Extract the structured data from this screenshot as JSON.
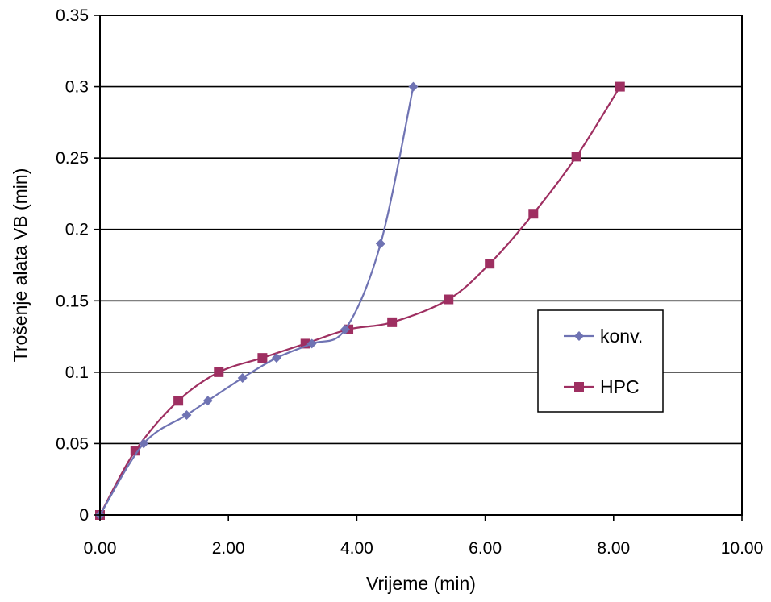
{
  "chart_data": {
    "type": "line",
    "title": "",
    "xlabel": "Vrijeme (min)",
    "ylabel": "Trošenje alata VB (min)",
    "xlim": [
      0,
      10
    ],
    "ylim": [
      0,
      0.35
    ],
    "x_ticks": [
      "0.00",
      "2.00",
      "4.00",
      "6.00",
      "8.00",
      "10.00"
    ],
    "y_ticks": [
      "0",
      "0.05",
      "0.1",
      "0.15",
      "0.2",
      "0.25",
      "0.3",
      "0.35"
    ],
    "grid": "horizontal",
    "legend_position": "right",
    "series": [
      {
        "name": "konv.",
        "color": "#6f73b3",
        "marker": "diamond",
        "points": [
          [
            0,
            0
          ],
          [
            0.68,
            0.05
          ],
          [
            1.35,
            0.07
          ],
          [
            1.68,
            0.08
          ],
          [
            2.22,
            0.096
          ],
          [
            2.75,
            0.11
          ],
          [
            3.3,
            0.12
          ],
          [
            3.82,
            0.13
          ],
          [
            4.37,
            0.19
          ],
          [
            4.88,
            0.3
          ]
        ]
      },
      {
        "name": "HPC",
        "color": "#9e2f61",
        "marker": "square",
        "points": [
          [
            0,
            0
          ],
          [
            0.55,
            0.045
          ],
          [
            1.22,
            0.08
          ],
          [
            1.85,
            0.1
          ],
          [
            2.53,
            0.11
          ],
          [
            3.2,
            0.12
          ],
          [
            3.87,
            0.13
          ],
          [
            4.55,
            0.135
          ],
          [
            5.43,
            0.151
          ],
          [
            6.07,
            0.176
          ],
          [
            6.75,
            0.211
          ],
          [
            7.42,
            0.251
          ],
          [
            8.1,
            0.3
          ]
        ]
      }
    ]
  }
}
